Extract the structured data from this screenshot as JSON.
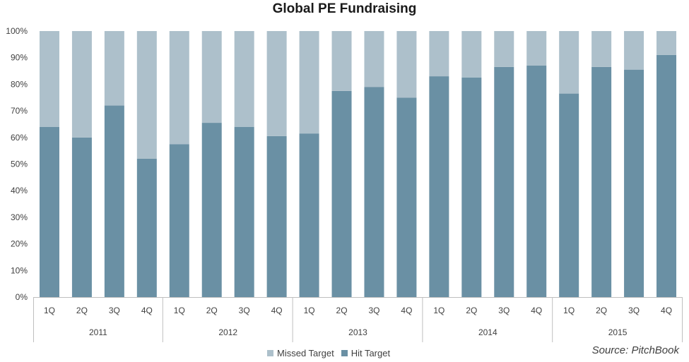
{
  "chart_data": {
    "type": "bar",
    "stacked": true,
    "title": "Global PE Fundraising",
    "source": "Source: PitchBook",
    "xlabel": "",
    "ylabel": "",
    "ylim": [
      0,
      100
    ],
    "y_tick_labels": [
      "0%",
      "10%",
      "20%",
      "30%",
      "40%",
      "50%",
      "60%",
      "70%",
      "80%",
      "90%",
      "100%"
    ],
    "grid": false,
    "legend_position": "bottom",
    "categories": [
      "1Q",
      "2Q",
      "3Q",
      "4Q",
      "1Q",
      "2Q",
      "3Q",
      "4Q",
      "1Q",
      "2Q",
      "3Q",
      "4Q",
      "1Q",
      "2Q",
      "3Q",
      "4Q",
      "1Q",
      "2Q",
      "3Q",
      "4Q"
    ],
    "groups": [
      {
        "label": "2011",
        "count": 4
      },
      {
        "label": "2012",
        "count": 4
      },
      {
        "label": "2013",
        "count": 4
      },
      {
        "label": "2014",
        "count": 4
      },
      {
        "label": "2015",
        "count": 4
      }
    ],
    "series": [
      {
        "name": "Missed Target",
        "color": "#adc0cb",
        "values": [
          36,
          40,
          28,
          48,
          42.5,
          34.5,
          36,
          39.5,
          38.5,
          22.5,
          21,
          25,
          17,
          17.5,
          13.5,
          13,
          23.5,
          13.5,
          14.5,
          9
        ]
      },
      {
        "name": "Hit Target",
        "color": "#6a90a4",
        "values": [
          64,
          60,
          72,
          52,
          57.5,
          65.5,
          64,
          60.5,
          61.5,
          77.5,
          79,
          75,
          83,
          82.5,
          86.5,
          87,
          76.5,
          86.5,
          85.5,
          91
        ]
      }
    ]
  }
}
